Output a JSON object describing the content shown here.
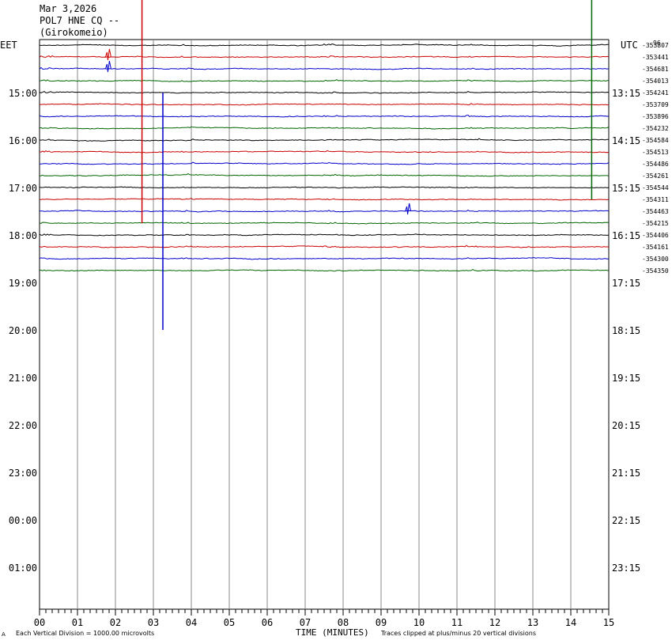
{
  "header": {
    "date": "Mar 3,2026",
    "station": "POL7 HNE CQ --",
    "location": "(Girokomeio)"
  },
  "footer": {
    "left_mark": "A",
    "scale_note": "Each Vertical Division = 1000.00 microvolts",
    "clip_note": "Traces clipped at plus/minus 20 vertical divisions"
  },
  "chart_data": {
    "type": "line",
    "title": "Mar 3,2026 POL7 HNE CQ -- (Girokomeio)",
    "xlabel": "TIME (MINUTES)",
    "x_ticks": [
      "00",
      "01",
      "02",
      "03",
      "04",
      "05",
      "06",
      "07",
      "08",
      "09",
      "10",
      "11",
      "12",
      "13",
      "14",
      "15"
    ],
    "xlim": [
      0,
      15
    ],
    "left_axis_label": "EET",
    "right_axis_label": "UTC",
    "left_hour_labels": [
      "15:00",
      "16:00",
      "17:00",
      "18:00",
      "19:00",
      "20:00",
      "21:00",
      "22:00",
      "23:00",
      "00:00",
      "01:00"
    ],
    "right_hour_labels": [
      "13:15",
      "14:15",
      "15:15",
      "16:15",
      "17:15",
      "18:15",
      "19:15",
      "20:15",
      "21:15",
      "22:15",
      "23:15"
    ],
    "grid": true,
    "trace_colors": [
      "#000000",
      "#cc0000",
      "#0000cc",
      "#006600"
    ],
    "trace_offset_labels": [
      "-353807",
      "-353441",
      "-354681",
      "-354013",
      "-354241",
      "-353709",
      "-353896",
      "-354232",
      "-354584",
      "-354513",
      "-354486",
      "-354261",
      "-354544",
      "-354311",
      "-354463",
      "-354215",
      "-354406",
      "-354161",
      "-354300",
      "-354350"
    ],
    "top_right_mark": "96",
    "events": [
      {
        "trace": 1,
        "minute": 1.8,
        "type": "spike",
        "color": "#cc0000"
      },
      {
        "trace": 2,
        "minute": 1.8,
        "type": "spike",
        "color": "#0000cc"
      },
      {
        "trace": 5,
        "minute": 2.7,
        "type": "clip_line",
        "color": "#cc0000"
      },
      {
        "trace": 14,
        "minute": 3.25,
        "type": "clip_line",
        "color": "#0000cc"
      },
      {
        "trace": 14,
        "minute": 9.7,
        "type": "spike",
        "color": "#0000cc"
      },
      {
        "trace": 3,
        "minute": 14.55,
        "type": "clip_line",
        "color": "#006600"
      }
    ]
  }
}
